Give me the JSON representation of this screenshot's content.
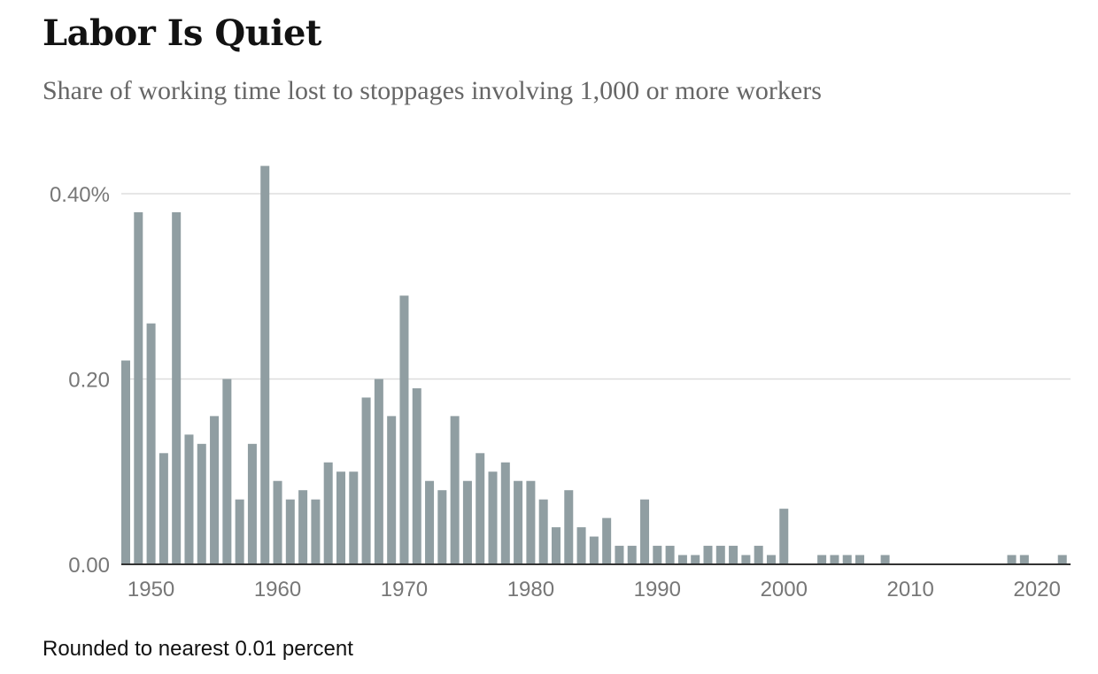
{
  "header": {
    "title": "Labor Is Quiet",
    "subtitle": "Share of working time lost to stoppages involving 1,000 or more workers"
  },
  "footer": {
    "note": "Rounded to nearest 0.01 percent"
  },
  "colors": {
    "bar": "#909ea2",
    "grid": "#dddddd",
    "axis": "#333333"
  },
  "chart_data": {
    "type": "bar",
    "title": "Labor Is Quiet",
    "subtitle": "Share of working time lost to stoppages involving 1,000 or more workers",
    "ylim": [
      0,
      0.43
    ],
    "yticks": [
      {
        "value": 0.4,
        "label": "0.40%"
      },
      {
        "value": 0.2,
        "label": "0.20"
      },
      {
        "value": 0.0,
        "label": "0.00"
      }
    ],
    "xticks": [
      1950,
      1960,
      1970,
      1980,
      1990,
      2000,
      2010,
      2020
    ],
    "x_range": [
      1948,
      2022
    ],
    "grid": true,
    "categories": [
      1948,
      1949,
      1950,
      1951,
      1952,
      1953,
      1954,
      1955,
      1956,
      1957,
      1958,
      1959,
      1960,
      1961,
      1962,
      1963,
      1964,
      1965,
      1966,
      1967,
      1968,
      1969,
      1970,
      1971,
      1972,
      1973,
      1974,
      1975,
      1976,
      1977,
      1978,
      1979,
      1980,
      1981,
      1982,
      1983,
      1984,
      1985,
      1986,
      1987,
      1988,
      1989,
      1990,
      1991,
      1992,
      1993,
      1994,
      1995,
      1996,
      1997,
      1998,
      1999,
      2000,
      2001,
      2002,
      2003,
      2004,
      2005,
      2006,
      2007,
      2008,
      2009,
      2010,
      2011,
      2012,
      2013,
      2014,
      2015,
      2016,
      2017,
      2018,
      2019,
      2020,
      2021,
      2022
    ],
    "values": [
      0.22,
      0.38,
      0.26,
      0.12,
      0.38,
      0.14,
      0.13,
      0.16,
      0.2,
      0.07,
      0.13,
      0.43,
      0.09,
      0.07,
      0.08,
      0.07,
      0.11,
      0.1,
      0.1,
      0.18,
      0.2,
      0.16,
      0.29,
      0.19,
      0.09,
      0.08,
      0.16,
      0.09,
      0.12,
      0.1,
      0.11,
      0.09,
      0.09,
      0.07,
      0.04,
      0.08,
      0.04,
      0.03,
      0.05,
      0.02,
      0.02,
      0.07,
      0.02,
      0.02,
      0.01,
      0.01,
      0.02,
      0.02,
      0.02,
      0.01,
      0.02,
      0.01,
      0.06,
      0.0,
      0.0,
      0.01,
      0.01,
      0.01,
      0.01,
      0.0,
      0.01,
      0.0,
      0.0,
      0.0,
      0.0,
      0.0,
      0.0,
      0.0,
      0.0,
      0.0,
      0.01,
      0.01,
      0.0,
      0.0,
      0.01
    ],
    "note": "Rounded to nearest 0.01 percent"
  }
}
